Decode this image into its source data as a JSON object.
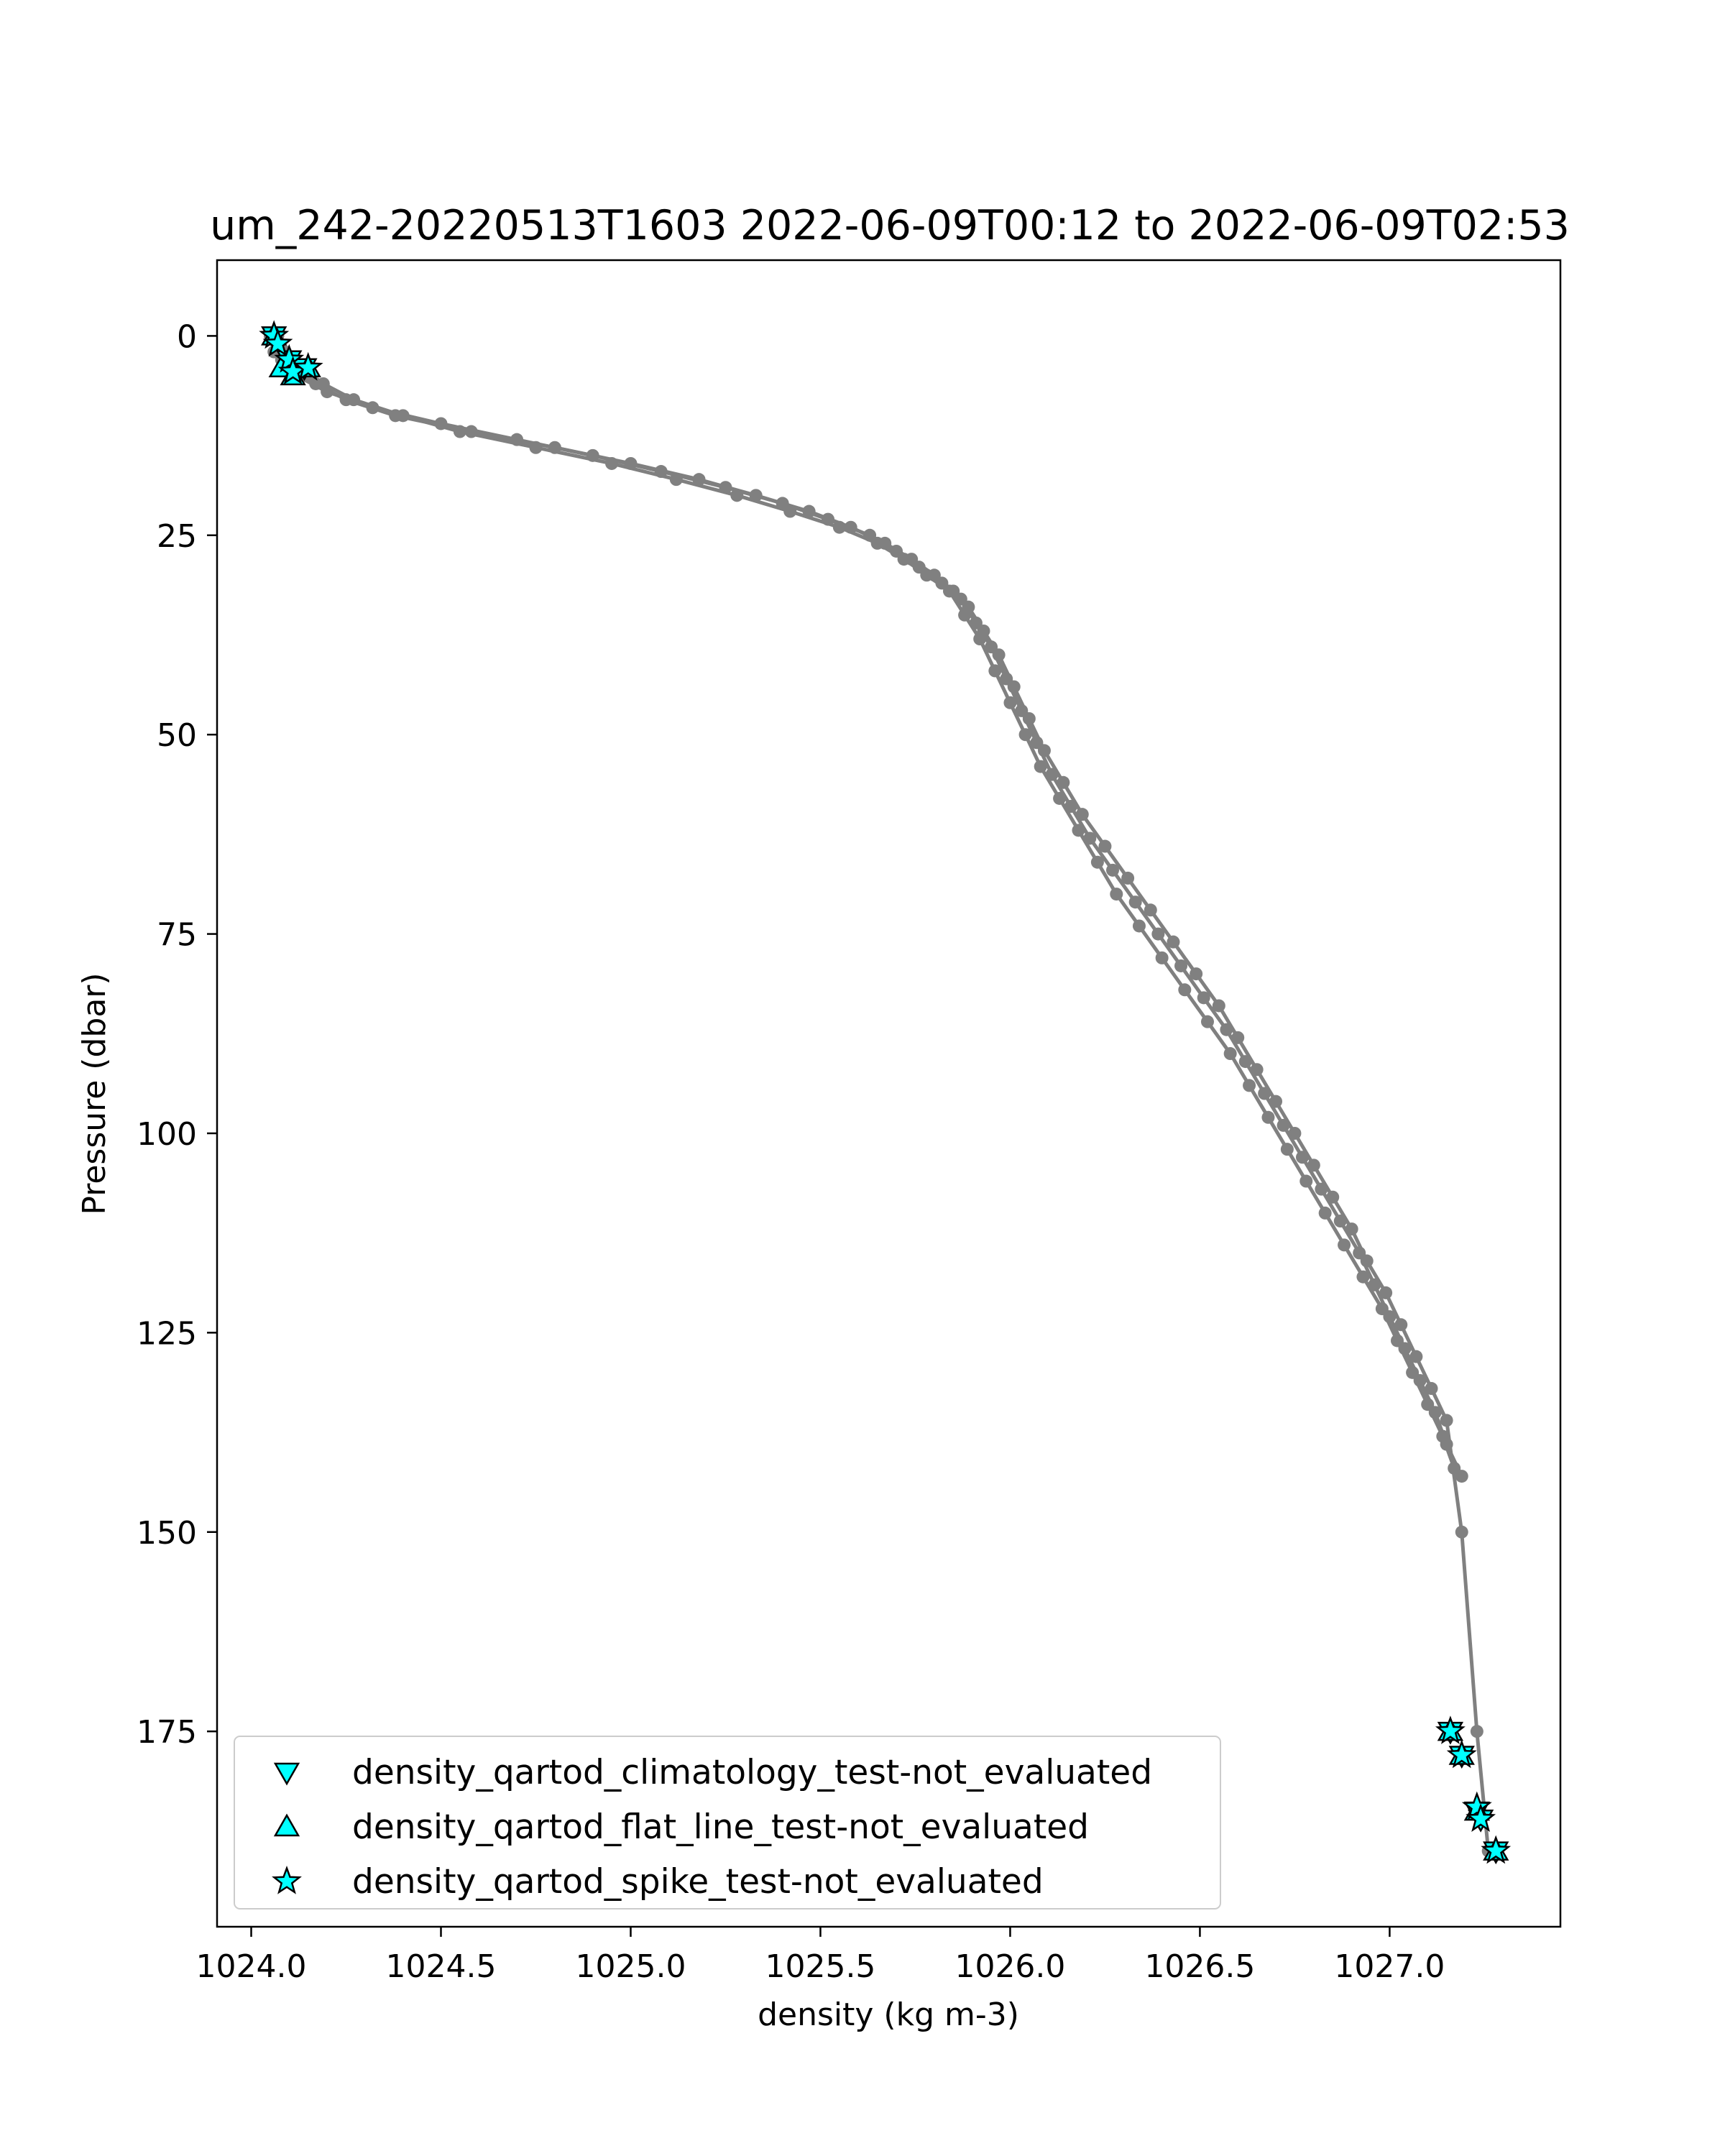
{
  "chart_data": {
    "type": "scatter",
    "title": "um_242-20220513T1603 2022-06-09T00:12 to 2022-06-09T02:53",
    "xlabel": "density (kg m-3)",
    "ylabel": "Pressure (dbar)",
    "xlim": [
      1023.91,
      1027.45
    ],
    "ylim": [
      199.5,
      -9.5
    ],
    "y_inverted": true,
    "grid": false,
    "legend_position": "lower-left",
    "x_ticks": [
      1024.0,
      1024.5,
      1025.0,
      1025.5,
      1026.0,
      1026.5,
      1027.0
    ],
    "x_tick_labels": [
      "1024.0",
      "1024.5",
      "1025.0",
      "1025.5",
      "1026.0",
      "1026.5",
      "1027.0"
    ],
    "y_ticks": [
      0,
      25,
      50,
      75,
      100,
      125,
      150,
      175
    ],
    "y_tick_labels": [
      "0",
      "25",
      "50",
      "75",
      "100",
      "125",
      "150",
      "175"
    ],
    "profile_color": "#808080",
    "marker_fill": "#00ffff",
    "marker_edge": "#000000",
    "profiles": [
      {
        "x": [
          1024.06,
          1024.07,
          1024.1,
          1024.14,
          1024.19,
          1024.27,
          1024.4,
          1024.55,
          1024.75,
          1024.95,
          1025.12,
          1025.28,
          1025.42,
          1025.55,
          1025.65,
          1025.72,
          1025.78,
          1025.84,
          1025.88,
          1025.92,
          1025.96,
          1026.0,
          1026.04,
          1026.08,
          1026.13,
          1026.18,
          1026.23,
          1026.28,
          1026.34,
          1026.4,
          1026.46,
          1026.52,
          1026.58,
          1026.63,
          1026.68,
          1026.73,
          1026.78,
          1026.83,
          1026.88,
          1026.93,
          1026.98,
          1027.02,
          1027.06,
          1027.1,
          1027.14,
          1027.17
        ],
        "y": [
          0,
          2,
          4,
          5,
          6,
          8,
          10,
          12,
          14,
          16,
          18,
          20,
          22,
          24,
          26,
          28,
          30,
          32,
          35,
          38,
          42,
          46,
          50,
          54,
          58,
          62,
          66,
          70,
          74,
          78,
          82,
          86,
          90,
          94,
          98,
          102,
          106,
          110,
          114,
          118,
          122,
          126,
          130,
          134,
          138,
          142
        ]
      },
      {
        "x": [
          1024.05,
          1024.06,
          1024.08,
          1024.12,
          1024.2,
          1024.32,
          1024.5,
          1024.7,
          1024.9,
          1025.08,
          1025.25,
          1025.4,
          1025.52,
          1025.63,
          1025.7,
          1025.76,
          1025.82,
          1025.87,
          1025.91,
          1025.95,
          1025.99,
          1026.03,
          1026.07,
          1026.11,
          1026.16,
          1026.21,
          1026.27,
          1026.33,
          1026.39,
          1026.45,
          1026.51,
          1026.57,
          1026.62,
          1026.67,
          1026.72,
          1026.77,
          1026.82,
          1026.87,
          1026.92,
          1026.96,
          1027.0,
          1027.04,
          1027.08,
          1027.12,
          1027.15,
          1027.19
        ],
        "y": [
          0,
          2,
          3,
          5,
          7,
          9,
          11,
          13,
          15,
          17,
          19,
          21,
          23,
          25,
          27,
          29,
          31,
          33,
          36,
          39,
          43,
          47,
          51,
          55,
          59,
          63,
          67,
          71,
          75,
          79,
          83,
          87,
          91,
          95,
          99,
          103,
          107,
          111,
          115,
          119,
          123,
          127,
          131,
          135,
          139,
          143
        ]
      },
      {
        "x": [
          1024.07,
          1024.09,
          1024.12,
          1024.17,
          1024.25,
          1024.38,
          1024.58,
          1024.8,
          1025.0,
          1025.18,
          1025.33,
          1025.47,
          1025.58,
          1025.67,
          1025.74,
          1025.8,
          1025.85,
          1025.89,
          1025.93,
          1025.97,
          1026.01,
          1026.05,
          1026.09,
          1026.14,
          1026.19,
          1026.25,
          1026.31,
          1026.37,
          1026.43,
          1026.49,
          1026.55,
          1026.6,
          1026.65,
          1026.7,
          1026.75,
          1026.8,
          1026.85,
          1026.9,
          1026.94,
          1026.99,
          1027.03,
          1027.07,
          1027.11,
          1027.15,
          1027.19,
          1027.23,
          1027.26
        ],
        "y": [
          0,
          2,
          4,
          6,
          8,
          10,
          12,
          14,
          16,
          18,
          20,
          22,
          24,
          26,
          28,
          30,
          32,
          34,
          37,
          40,
          44,
          48,
          52,
          56,
          60,
          64,
          68,
          72,
          76,
          80,
          84,
          88,
          92,
          96,
          100,
          104,
          108,
          112,
          116,
          120,
          124,
          128,
          132,
          136,
          150,
          175,
          190
        ]
      }
    ],
    "flag_series": [
      {
        "name": "density_qartod_climatology_test-not_evaluated",
        "marker": "triangle-down",
        "points": [
          {
            "x": 1024.06,
            "y": 0
          },
          {
            "x": 1024.1,
            "y": 3
          },
          {
            "x": 1024.14,
            "y": 4
          },
          {
            "x": 1027.16,
            "y": 175
          },
          {
            "x": 1027.19,
            "y": 178
          },
          {
            "x": 1027.23,
            "y": 185
          },
          {
            "x": 1027.24,
            "y": 186
          },
          {
            "x": 1027.28,
            "y": 190
          }
        ]
      },
      {
        "name": "density_qartod_flat_line_test-not_evaluated",
        "marker": "triangle-up",
        "points": [
          {
            "x": 1024.06,
            "y": 0
          },
          {
            "x": 1024.08,
            "y": 4
          },
          {
            "x": 1024.11,
            "y": 5
          },
          {
            "x": 1024.15,
            "y": 4
          },
          {
            "x": 1027.16,
            "y": 175
          },
          {
            "x": 1027.19,
            "y": 178
          },
          {
            "x": 1027.23,
            "y": 185
          },
          {
            "x": 1027.28,
            "y": 190
          }
        ]
      },
      {
        "name": "density_qartod_spike_test-not_evaluated",
        "marker": "star",
        "points": [
          {
            "x": 1024.06,
            "y": 0
          },
          {
            "x": 1024.07,
            "y": 1
          },
          {
            "x": 1024.1,
            "y": 3
          },
          {
            "x": 1024.11,
            "y": 4.5
          },
          {
            "x": 1024.15,
            "y": 4
          },
          {
            "x": 1027.16,
            "y": 175
          },
          {
            "x": 1027.19,
            "y": 178
          },
          {
            "x": 1027.23,
            "y": 184.5
          },
          {
            "x": 1027.24,
            "y": 186
          },
          {
            "x": 1027.28,
            "y": 190
          }
        ]
      }
    ]
  }
}
